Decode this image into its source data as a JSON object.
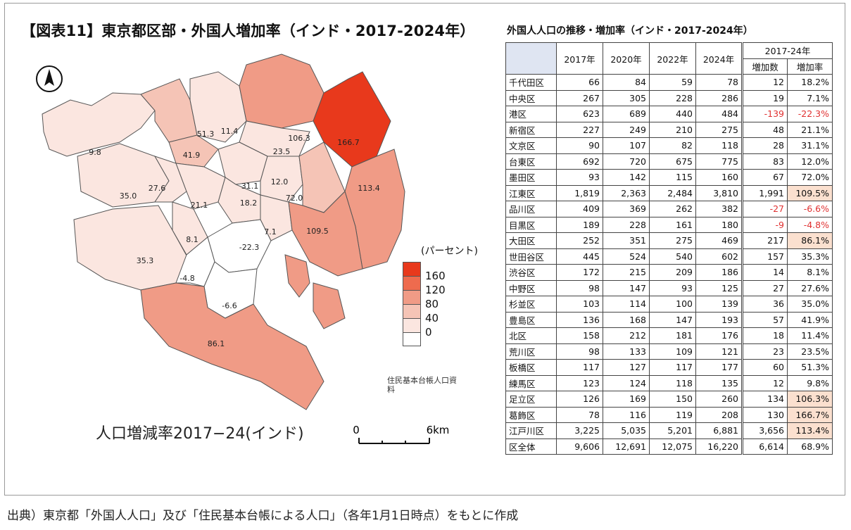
{
  "title": "【図表11】東京都区部・外国人増加率（インド・2017-2024年）",
  "map": {
    "caption": "人口増減率2017−24(インド)",
    "source_note": "住民基本台帳人口資料",
    "north_arrow": "north-arrow-icon",
    "scale": {
      "start": "0",
      "end": "6km"
    },
    "legend": {
      "title": "(パーセント)",
      "items": [
        {
          "label": "160",
          "color": "#e8391c"
        },
        {
          "label": "120",
          "color": "#ee6b4e"
        },
        {
          "label": "80",
          "color": "#f09b86"
        },
        {
          "label": "40",
          "color": "#f5c4b6"
        },
        {
          "label": "0",
          "color": "#fbe6e0"
        },
        {
          "label": "",
          "color": "#ffffff"
        }
      ]
    },
    "ward_labels": [
      "51.3",
      "11.4",
      "106.3",
      "166.7",
      "9.8",
      "41.9",
      "23.5",
      "27.6",
      "35.0",
      "31.1",
      "12.0",
      "113.4",
      "21.1",
      "18.2",
      "72.0",
      "109.5",
      "8.1",
      "7.1",
      "-22.3",
      "35.3",
      "-4.8",
      "-6.6",
      "86.1"
    ]
  },
  "table": {
    "title": "外国人人口の推移・増加率（インド・2017-2024年）",
    "headers": {
      "y2017": "2017年",
      "y2020": "2020年",
      "y2022": "2022年",
      "y2024": "2024年",
      "period": "2017-24年",
      "increase": "増加数",
      "rate": "増加率"
    },
    "rows": [
      {
        "ward": "千代田区",
        "y2017": "66",
        "y2020": "84",
        "y2022": "59",
        "y2024": "78",
        "increase": "12",
        "rate": "18.2%"
      },
      {
        "ward": "中央区",
        "y2017": "267",
        "y2020": "305",
        "y2022": "228",
        "y2024": "286",
        "increase": "19",
        "rate": "7.1%"
      },
      {
        "ward": "港区",
        "y2017": "623",
        "y2020": "689",
        "y2022": "440",
        "y2024": "484",
        "increase": "-139",
        "rate": "-22.3%",
        "negative": true
      },
      {
        "ward": "新宿区",
        "y2017": "227",
        "y2020": "249",
        "y2022": "210",
        "y2024": "275",
        "increase": "48",
        "rate": "21.1%"
      },
      {
        "ward": "文京区",
        "y2017": "90",
        "y2020": "107",
        "y2022": "82",
        "y2024": "118",
        "increase": "28",
        "rate": "31.1%"
      },
      {
        "ward": "台東区",
        "y2017": "692",
        "y2020": "720",
        "y2022": "675",
        "y2024": "775",
        "increase": "83",
        "rate": "12.0%"
      },
      {
        "ward": "墨田区",
        "y2017": "93",
        "y2020": "142",
        "y2022": "115",
        "y2024": "160",
        "increase": "67",
        "rate": "72.0%"
      },
      {
        "ward": "江東区",
        "y2017": "1,819",
        "y2020": "2,363",
        "y2022": "2,484",
        "y2024": "3,810",
        "increase": "1,991",
        "rate": "109.5%",
        "highlight": true
      },
      {
        "ward": "品川区",
        "y2017": "409",
        "y2020": "369",
        "y2022": "262",
        "y2024": "382",
        "increase": "-27",
        "rate": "-6.6%",
        "negative": true
      },
      {
        "ward": "目黒区",
        "y2017": "189",
        "y2020": "228",
        "y2022": "161",
        "y2024": "180",
        "increase": "-9",
        "rate": "-4.8%",
        "negative": true
      },
      {
        "ward": "大田区",
        "y2017": "252",
        "y2020": "351",
        "y2022": "275",
        "y2024": "469",
        "increase": "217",
        "rate": "86.1%",
        "highlight": true
      },
      {
        "ward": "世田谷区",
        "y2017": "445",
        "y2020": "524",
        "y2022": "540",
        "y2024": "602",
        "increase": "157",
        "rate": "35.3%"
      },
      {
        "ward": "渋谷区",
        "y2017": "172",
        "y2020": "215",
        "y2022": "209",
        "y2024": "186",
        "increase": "14",
        "rate": "8.1%"
      },
      {
        "ward": "中野区",
        "y2017": "98",
        "y2020": "147",
        "y2022": "93",
        "y2024": "125",
        "increase": "27",
        "rate": "27.6%"
      },
      {
        "ward": "杉並区",
        "y2017": "103",
        "y2020": "114",
        "y2022": "100",
        "y2024": "139",
        "increase": "36",
        "rate": "35.0%"
      },
      {
        "ward": "豊島区",
        "y2017": "136",
        "y2020": "168",
        "y2022": "147",
        "y2024": "193",
        "increase": "57",
        "rate": "41.9%"
      },
      {
        "ward": "北区",
        "y2017": "158",
        "y2020": "212",
        "y2022": "181",
        "y2024": "176",
        "increase": "18",
        "rate": "11.4%"
      },
      {
        "ward": "荒川区",
        "y2017": "98",
        "y2020": "133",
        "y2022": "109",
        "y2024": "121",
        "increase": "23",
        "rate": "23.5%"
      },
      {
        "ward": "板橋区",
        "y2017": "117",
        "y2020": "127",
        "y2022": "117",
        "y2024": "177",
        "increase": "60",
        "rate": "51.3%"
      },
      {
        "ward": "練馬区",
        "y2017": "123",
        "y2020": "124",
        "y2022": "118",
        "y2024": "135",
        "increase": "12",
        "rate": "9.8%"
      },
      {
        "ward": "足立区",
        "y2017": "126",
        "y2020": "169",
        "y2022": "150",
        "y2024": "260",
        "increase": "134",
        "rate": "106.3%",
        "highlight": true
      },
      {
        "ward": "葛飾区",
        "y2017": "78",
        "y2020": "116",
        "y2022": "119",
        "y2024": "208",
        "increase": "130",
        "rate": "166.7%",
        "highlight": true
      },
      {
        "ward": "江戸川区",
        "y2017": "3,225",
        "y2020": "5,035",
        "y2022": "5,201",
        "y2024": "6,881",
        "increase": "3,656",
        "rate": "113.4%",
        "highlight": true
      },
      {
        "ward": "区全体",
        "y2017": "9,606",
        "y2020": "12,691",
        "y2022": "12,075",
        "y2024": "16,220",
        "increase": "6,614",
        "rate": "68.9%"
      }
    ]
  },
  "footer": "出典）東京都「外国人人口」及び「住民基本台帳による人口」（各年1月1日時点）をもとに作成"
}
